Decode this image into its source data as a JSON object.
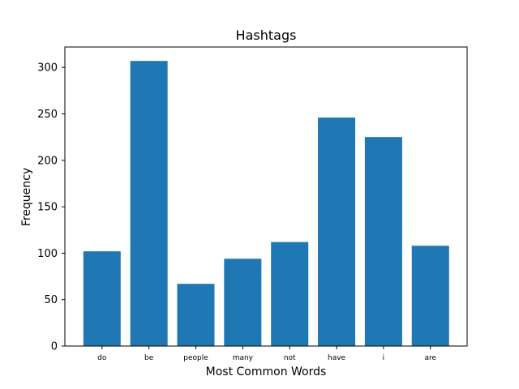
{
  "chart_data": {
    "type": "bar",
    "title": "Hashtags",
    "xlabel": "Most Common Words",
    "ylabel": "Frequency",
    "categories": [
      "do",
      "be",
      "people",
      "many",
      "not",
      "have",
      "i",
      "are"
    ],
    "values": [
      102,
      307,
      67,
      94,
      112,
      246,
      225,
      108
    ],
    "ylim": [
      0,
      322
    ],
    "yticks": [
      0,
      50,
      100,
      150,
      200,
      250,
      300
    ],
    "grid": false,
    "bar_color": "#1f77b4"
  }
}
